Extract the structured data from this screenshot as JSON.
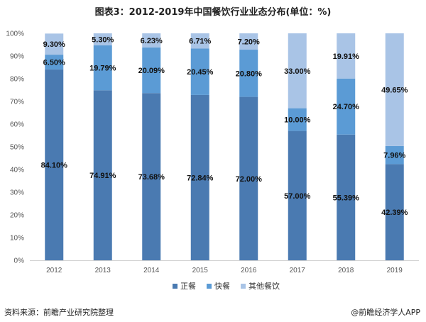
{
  "title": "图表3：2012-2019年中国餐饮行业业态分布(单位：%)",
  "source": "资料来源：前瞻产业研究院整理",
  "credit": "@前瞻经济学人APP",
  "chart_data": {
    "type": "bar",
    "stacked": true,
    "categories": [
      "2012",
      "2013",
      "2014",
      "2015",
      "2016",
      "2017",
      "2018",
      "2019"
    ],
    "series": [
      {
        "name": "正餐",
        "color": "#4a7ab1",
        "values": [
          84.1,
          74.91,
          73.68,
          72.84,
          72.0,
          57.0,
          55.39,
          42.39
        ],
        "labels": [
          "84.10%",
          "74.91%",
          "73.68%",
          "72.84%",
          "72.00%",
          "57.00%",
          "55.39%",
          "42.39%"
        ]
      },
      {
        "name": "快餐",
        "color": "#5b9bd5",
        "values": [
          6.5,
          19.79,
          20.09,
          20.45,
          20.8,
          10.0,
          24.7,
          7.96
        ],
        "labels": [
          "6.50%",
          "19.79%",
          "20.09%",
          "20.45%",
          "20.80%",
          "10.00%",
          "24.70%",
          "7.96%"
        ]
      },
      {
        "name": "其他餐饮",
        "color": "#a9c4e6",
        "values": [
          9.3,
          5.3,
          6.23,
          6.71,
          7.2,
          33.0,
          19.91,
          49.65
        ],
        "labels": [
          "9.30%",
          "5.30%",
          "6.23%",
          "6.71%",
          "7.20%",
          "33.00%",
          "19.91%",
          "49.65%"
        ]
      }
    ],
    "ylim": [
      0,
      100
    ],
    "yticks": [
      "0%",
      "10%",
      "20%",
      "30%",
      "40%",
      "50%",
      "60%",
      "70%",
      "80%",
      "90%",
      "100%"
    ],
    "grid": false,
    "legend_position": "bottom"
  }
}
